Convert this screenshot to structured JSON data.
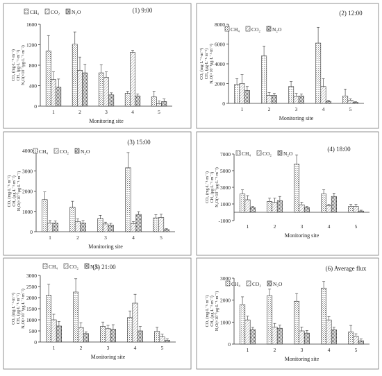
{
  "legend_labels": [
    "CH₄",
    "CO₂",
    "N₂O"
  ],
  "ylabel_lines": [
    "CO₂ (mg·L⁻¹·m⁻²)",
    "CH₄ (μg·L⁻¹·m⁻²)",
    "N₂O(×10⁻¹μg·L⁻¹·m⁻²)"
  ],
  "chart_data": [
    {
      "type": "bar",
      "title": "(1) 9:00",
      "xlabel": "Monitoring site",
      "categories": [
        "1",
        "2",
        "3",
        "4",
        "5"
      ],
      "ylim": [
        0,
        1600
      ],
      "yticks": [
        0,
        400,
        800,
        1200,
        1600
      ],
      "series": [
        {
          "name": "CH₄",
          "values": [
            1080,
            1210,
            650,
            250,
            180
          ],
          "errors": [
            300,
            240,
            160,
            40,
            110
          ]
        },
        {
          "name": "CO₂",
          "values": [
            520,
            700,
            560,
            1050,
            50
          ],
          "errors": [
            150,
            260,
            110,
            40,
            50
          ]
        },
        {
          "name": "N₂O",
          "values": [
            370,
            650,
            220,
            200,
            90
          ],
          "errors": [
            160,
            170,
            40,
            40,
            50
          ]
        }
      ]
    },
    {
      "type": "bar",
      "title": "(2) 12:00",
      "xlabel": "Monitoring site",
      "categories": [
        "1",
        "2",
        "3",
        "4",
        "5"
      ],
      "ylim": [
        0,
        8000
      ],
      "yticks": [
        0,
        2000,
        4000,
        6000,
        8000
      ],
      "series": [
        {
          "name": "CH₄",
          "values": [
            1900,
            4800,
            1700,
            6100,
            750
          ],
          "errors": [
            600,
            1000,
            500,
            1600,
            700
          ]
        },
        {
          "name": "CO₂",
          "values": [
            2000,
            800,
            700,
            1700,
            300
          ],
          "errors": [
            900,
            300,
            300,
            800,
            150
          ]
        },
        {
          "name": "N₂O",
          "values": [
            1300,
            800,
            750,
            200,
            100
          ],
          "errors": [
            400,
            200,
            200,
            100,
            60
          ]
        }
      ]
    },
    {
      "type": "bar",
      "title": "(3) 15:00",
      "xlabel": "Monitoring site",
      "categories": [
        "1",
        "2",
        "3",
        "4",
        "5"
      ],
      "ylim": [
        0,
        4000
      ],
      "yticks": [
        0,
        1000,
        2000,
        3000,
        4000
      ],
      "series": [
        {
          "name": "CH₄",
          "values": [
            1580,
            1200,
            650,
            3150,
            680
          ],
          "errors": [
            380,
            300,
            160,
            750,
            160
          ]
        },
        {
          "name": "CO₂",
          "values": [
            420,
            500,
            380,
            400,
            700
          ],
          "errors": [
            130,
            130,
            90,
            100,
            160
          ]
        },
        {
          "name": "N₂O",
          "values": [
            430,
            430,
            330,
            850,
            110
          ],
          "errors": [
            100,
            120,
            80,
            140,
            40
          ]
        }
      ]
    },
    {
      "type": "bar",
      "title": "(4) 18:00",
      "xlabel": "Monitoring site",
      "categories": [
        "1",
        "2",
        "3",
        "4",
        "5"
      ],
      "ylim": [
        -1000,
        7000
      ],
      "yticks": [
        -1000,
        1000,
        3000,
        5000,
        7000
      ],
      "series": [
        {
          "name": "CH₄",
          "values": [
            2200,
            1300,
            5800,
            2200,
            700
          ],
          "errors": [
            500,
            400,
            1100,
            500,
            250
          ]
        },
        {
          "name": "CO₂",
          "values": [
            1500,
            1200,
            900,
            800,
            700
          ],
          "errors": [
            500,
            500,
            300,
            150,
            250
          ]
        },
        {
          "name": "N₂O",
          "values": [
            550,
            1400,
            550,
            1900,
            150
          ],
          "errors": [
            150,
            500,
            150,
            400,
            100
          ]
        }
      ]
    },
    {
      "type": "bar",
      "title": "(5) 21:00",
      "xlabel": "Monitoring site",
      "categories": [
        "1",
        "2",
        "3",
        "4",
        "5"
      ],
      "ylim": [
        0,
        3000
      ],
      "yticks": [
        0,
        500,
        1000,
        1500,
        2000,
        2500,
        3000
      ],
      "series": [
        {
          "name": "CH₄",
          "values": [
            2100,
            2250,
            700,
            1100,
            480
          ],
          "errors": [
            500,
            600,
            200,
            300,
            180
          ]
        },
        {
          "name": "CO₂",
          "values": [
            1000,
            650,
            600,
            1750,
            230
          ],
          "errors": [
            250,
            220,
            150,
            400,
            120
          ]
        },
        {
          "name": "N₂O",
          "values": [
            720,
            380,
            580,
            500,
            80
          ],
          "errors": [
            200,
            80,
            200,
            200,
            60
          ]
        }
      ]
    },
    {
      "type": "bar",
      "title": "(6) Average flux",
      "xlabel": "Monitoring site",
      "categories": [
        "1",
        "2",
        "3",
        "4",
        "5"
      ],
      "ylim": [
        0,
        3000
      ],
      "yticks": [
        0,
        1000,
        2000,
        3000
      ],
      "series": [
        {
          "name": "CH₄",
          "values": [
            1800,
            2200,
            1950,
            2550,
            550
          ],
          "errors": [
            350,
            300,
            350,
            300,
            300
          ]
        },
        {
          "name": "CO₂",
          "values": [
            1100,
            780,
            600,
            1100,
            350
          ],
          "errors": [
            170,
            160,
            180,
            150,
            120
          ]
        },
        {
          "name": "N₂O",
          "values": [
            660,
            720,
            500,
            650,
            150
          ],
          "errors": [
            100,
            140,
            120,
            120,
            80
          ]
        }
      ]
    }
  ]
}
